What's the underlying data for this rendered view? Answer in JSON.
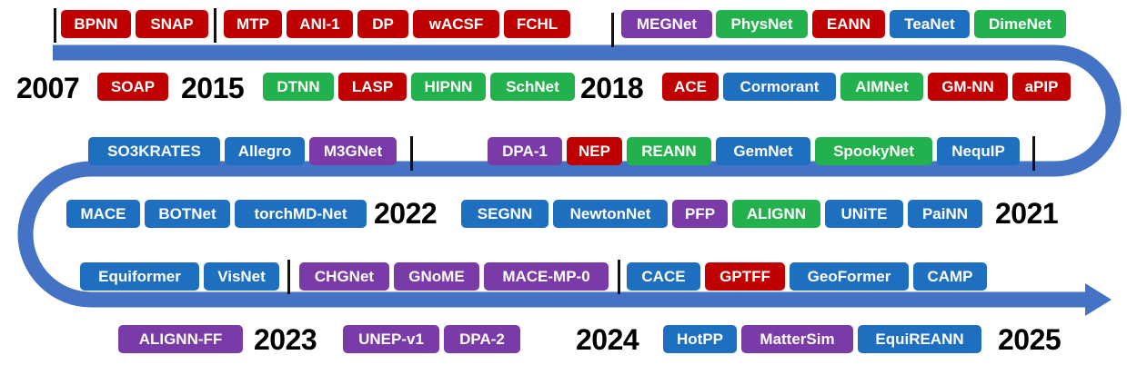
{
  "colors": {
    "red": "#c00000",
    "green": "#22b14c",
    "blue": "#1f6fc0",
    "purple": "#7a3aa7",
    "band": "#4472c4"
  },
  "years": [
    "2007",
    "2015",
    "2018",
    "2021",
    "2022",
    "2023",
    "2024",
    "2025"
  ],
  "models": [
    {
      "name": "BPNN",
      "color": "red"
    },
    {
      "name": "SNAP",
      "color": "red"
    },
    {
      "name": "MTP",
      "color": "red"
    },
    {
      "name": "ANI-1",
      "color": "red"
    },
    {
      "name": "DP",
      "color": "red"
    },
    {
      "name": "wACSF",
      "color": "red"
    },
    {
      "name": "FCHL",
      "color": "red"
    },
    {
      "name": "MEGNet",
      "color": "purple"
    },
    {
      "name": "PhysNet",
      "color": "green"
    },
    {
      "name": "EANN",
      "color": "red"
    },
    {
      "name": "TeaNet",
      "color": "blue"
    },
    {
      "name": "DimeNet",
      "color": "green"
    },
    {
      "name": "SOAP",
      "color": "red"
    },
    {
      "name": "DTNN",
      "color": "green"
    },
    {
      "name": "LASP",
      "color": "red"
    },
    {
      "name": "HIPNN",
      "color": "green"
    },
    {
      "name": "SchNet",
      "color": "green"
    },
    {
      "name": "ACE",
      "color": "red"
    },
    {
      "name": "Cormorant",
      "color": "blue"
    },
    {
      "name": "AIMNet",
      "color": "green"
    },
    {
      "name": "GM-NN",
      "color": "red"
    },
    {
      "name": "aPIP",
      "color": "red"
    },
    {
      "name": "SO3KRATES",
      "color": "blue"
    },
    {
      "name": "Allegro",
      "color": "blue"
    },
    {
      "name": "M3GNet",
      "color": "purple"
    },
    {
      "name": "DPA-1",
      "color": "purple"
    },
    {
      "name": "NEP",
      "color": "red"
    },
    {
      "name": "REANN",
      "color": "green"
    },
    {
      "name": "GemNet",
      "color": "blue"
    },
    {
      "name": "SpookyNet",
      "color": "green"
    },
    {
      "name": "NequIP",
      "color": "blue"
    },
    {
      "name": "MACE",
      "color": "blue"
    },
    {
      "name": "BOTNet",
      "color": "blue"
    },
    {
      "name": "torchMD-Net",
      "color": "blue"
    },
    {
      "name": "SEGNN",
      "color": "blue"
    },
    {
      "name": "NewtonNet",
      "color": "blue"
    },
    {
      "name": "PFP",
      "color": "purple"
    },
    {
      "name": "ALIGNN",
      "color": "green"
    },
    {
      "name": "UNiTE",
      "color": "blue"
    },
    {
      "name": "PaiNN",
      "color": "blue"
    },
    {
      "name": "Equiformer",
      "color": "blue"
    },
    {
      "name": "VisNet",
      "color": "blue"
    },
    {
      "name": "CHGNet",
      "color": "purple"
    },
    {
      "name": "GNoME",
      "color": "purple"
    },
    {
      "name": "MACE-MP-0",
      "color": "purple"
    },
    {
      "name": "CACE",
      "color": "blue"
    },
    {
      "name": "GPTFF",
      "color": "red"
    },
    {
      "name": "GeoFormer",
      "color": "blue"
    },
    {
      "name": "CAMP",
      "color": "blue"
    },
    {
      "name": "ALIGNN-FF",
      "color": "purple"
    },
    {
      "name": "UNEP-v1",
      "color": "purple"
    },
    {
      "name": "DPA-2",
      "color": "purple"
    },
    {
      "name": "HotPP",
      "color": "blue"
    },
    {
      "name": "MatterSim",
      "color": "purple"
    },
    {
      "name": "EquiREANN",
      "color": "blue"
    }
  ]
}
